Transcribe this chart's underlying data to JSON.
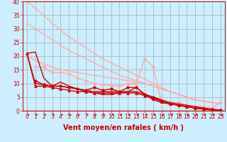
{
  "xlabel": "Vent moyen/en rafales ( km/h )",
  "xlabel_color": "#cc0000",
  "bg_color": "#cceeff",
  "grid_color": "#aabbbb",
  "axis_color": "#cc0000",
  "xlim": [
    -0.5,
    23.5
  ],
  "ylim": [
    0,
    40
  ],
  "yticks": [
    0,
    5,
    10,
    15,
    20,
    25,
    30,
    35,
    40
  ],
  "xticks": [
    0,
    1,
    2,
    3,
    4,
    5,
    6,
    7,
    8,
    9,
    10,
    11,
    12,
    13,
    14,
    15,
    16,
    17,
    18,
    19,
    20,
    21,
    22,
    23
  ],
  "lines": [
    {
      "x": [
        0,
        1,
        2,
        3,
        4,
        5,
        6,
        7,
        8,
        9,
        10,
        11,
        12,
        13,
        14,
        15,
        16,
        17,
        18,
        19,
        20,
        21,
        22,
        23
      ],
      "y": [
        40,
        37.5,
        35,
        32,
        29.5,
        27,
        25,
        23,
        21,
        19,
        17.5,
        16,
        14.5,
        13,
        11.5,
        10,
        8.5,
        7,
        6,
        5,
        4,
        3.5,
        3,
        2.5
      ],
      "color": "#ffaaaa",
      "lw": 1.0,
      "marker": null
    },
    {
      "x": [
        0,
        1,
        2,
        3,
        4,
        5,
        6,
        7,
        8,
        9,
        10,
        11,
        12,
        13,
        14,
        15,
        16,
        17,
        18,
        19,
        20,
        21,
        22,
        23
      ],
      "y": [
        32,
        30,
        28,
        26,
        24,
        22,
        20.5,
        19,
        17.5,
        16,
        14.5,
        13,
        12,
        11,
        10,
        9,
        8,
        7,
        6,
        5,
        4,
        3.5,
        3,
        2.5
      ],
      "color": "#ffaaaa",
      "lw": 1.0,
      "marker": null
    },
    {
      "x": [
        0,
        1,
        2,
        3,
        4,
        5,
        6,
        7,
        8,
        9,
        10,
        11,
        12,
        13,
        14,
        15,
        16,
        17,
        18,
        19,
        20,
        21,
        22,
        23
      ],
      "y": [
        20,
        18.5,
        17,
        16,
        15,
        14.5,
        14,
        13.5,
        13,
        12.5,
        12,
        11.5,
        11,
        10.5,
        10,
        9,
        8,
        7,
        6,
        5,
        4,
        3.5,
        3,
        2.5
      ],
      "color": "#ffaaaa",
      "lw": 1.0,
      "marker": null
    },
    {
      "x": [
        1,
        2,
        3,
        4,
        5,
        6,
        7,
        8,
        9,
        10,
        11,
        12,
        13,
        14,
        15,
        16,
        17,
        18,
        19,
        20,
        21,
        22,
        23
      ],
      "y": [
        16,
        16,
        14,
        14,
        13.5,
        12,
        11,
        10,
        9.5,
        9,
        9,
        10,
        10,
        19,
        16,
        3,
        3,
        3,
        2,
        1.5,
        1.5,
        1,
        3
      ],
      "color": "#ffaaaa",
      "lw": 1.0,
      "marker": "D",
      "markersize": 2.5
    },
    {
      "x": [
        0,
        1,
        2,
        3,
        4,
        5,
        6,
        7,
        8,
        9,
        10,
        11,
        12,
        13,
        14,
        15,
        16,
        17,
        18,
        19,
        20,
        21,
        22,
        23
      ],
      "y": [
        21,
        21.5,
        12,
        9,
        10.5,
        9,
        8,
        7,
        6.5,
        6,
        6,
        6.5,
        7,
        8.5,
        6,
        4,
        3,
        2.5,
        2,
        1.5,
        1,
        0.8,
        0.5,
        0.3
      ],
      "color": "#cc0000",
      "lw": 1.0,
      "marker": null
    },
    {
      "x": [
        0,
        1,
        2,
        3,
        4,
        5,
        6,
        7,
        8,
        9,
        10,
        11,
        12,
        13,
        14,
        15,
        16,
        17,
        18,
        19,
        20,
        21,
        22,
        23
      ],
      "y": [
        21,
        10,
        9.5,
        9,
        9,
        8.5,
        8,
        7.5,
        7,
        7,
        7,
        7,
        7,
        7,
        6,
        5,
        4,
        3,
        2.5,
        2,
        1.5,
        1,
        0.5,
        0.2
      ],
      "color": "#cc0000",
      "lw": 1.0,
      "marker": null
    },
    {
      "x": [
        0,
        1,
        2,
        3,
        4,
        5,
        6,
        7,
        8,
        9,
        10,
        11,
        12,
        13,
        14,
        15,
        16,
        17,
        18,
        19,
        20,
        21,
        22,
        23
      ],
      "y": [
        21,
        9,
        9,
        8.5,
        8,
        7.5,
        7,
        7,
        6.5,
        6.5,
        6.5,
        6.5,
        6.5,
        6.5,
        5.5,
        4.5,
        3.5,
        2.5,
        2,
        1.5,
        1,
        0.5,
        0.3,
        0.2
      ],
      "color": "#cc0000",
      "lw": 1.0,
      "marker": "^",
      "markersize": 3
    },
    {
      "x": [
        1,
        2,
        3,
        4,
        5,
        6,
        7,
        8,
        9,
        10,
        11,
        12,
        13,
        14,
        15,
        16,
        17,
        18,
        19,
        20,
        21,
        22,
        23
      ],
      "y": [
        11,
        9.5,
        9,
        9,
        8.5,
        8,
        7.5,
        8.5,
        7.5,
        8,
        7,
        8.5,
        8.5,
        6,
        5,
        3.5,
        2.5,
        2,
        1.5,
        1,
        0.7,
        0.4,
        0.2
      ],
      "color": "#cc0000",
      "lw": 1.0,
      "marker": "D",
      "markersize": 2.5
    }
  ],
  "tick_fontsize": 5.5,
  "label_fontsize": 7
}
